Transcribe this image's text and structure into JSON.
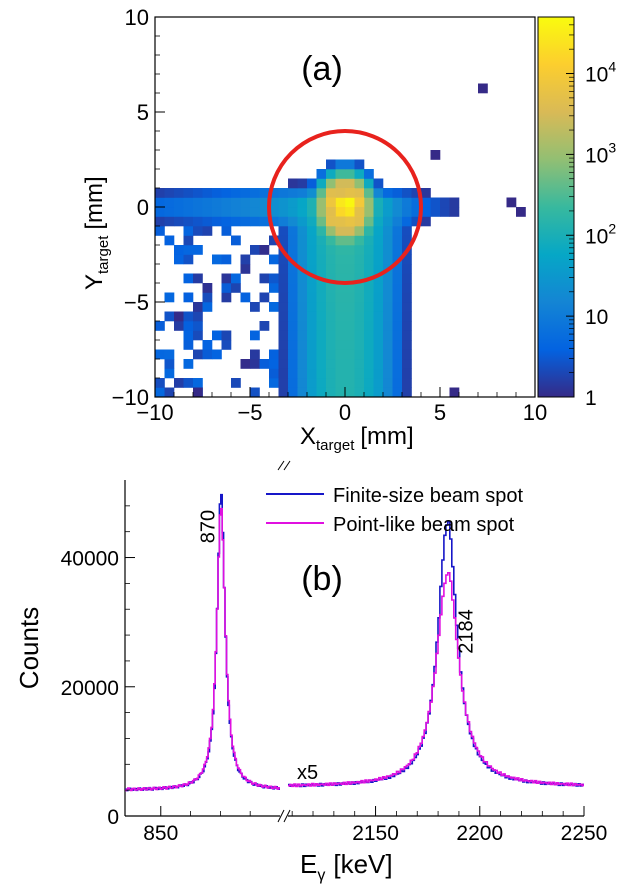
{
  "chart_data": [
    {
      "type": "heatmap",
      "panel_label": "(a)",
      "xlabel_main": "X",
      "xlabel_sub": "target",
      "xlabel_unit": "[mm]",
      "ylabel_main": "Y",
      "ylabel_sub": "target",
      "ylabel_unit": "[mm]",
      "xlim": [
        -10,
        10
      ],
      "ylim": [
        -10,
        10
      ],
      "x_ticks": [
        -10,
        -5,
        0,
        5,
        10
      ],
      "x_tick_labels": [
        "−10",
        "−5",
        "0",
        "5",
        "10"
      ],
      "y_ticks": [
        -10,
        -5,
        0,
        5,
        10
      ],
      "y_tick_labels": [
        "−10",
        "−5",
        "0",
        "5",
        "10"
      ],
      "bins": 40,
      "colorbar": {
        "scale": "log",
        "min": 1,
        "max": 50000,
        "ticks": [
          {
            "value": 1,
            "base": "1",
            "exp": ""
          },
          {
            "value": 10,
            "base": "10",
            "exp": ""
          },
          {
            "value": 100,
            "base": "10",
            "exp": "2"
          },
          {
            "value": 1000,
            "base": "10",
            "exp": "3"
          },
          {
            "value": 10000,
            "base": "10",
            "exp": "4"
          }
        ],
        "palette": [
          "#352a87",
          "#0363e1",
          "#1485d4",
          "#06a7c6",
          "#38b99e",
          "#92bf73",
          "#d9ba56",
          "#fcce2e",
          "#f9fb0e"
        ]
      },
      "circle": {
        "center": [
          0,
          0
        ],
        "radius": 4,
        "color": "#e8221d"
      },
      "cells": [
        [
          0.25,
          0.25,
          45000
        ],
        [
          -0.25,
          0.25,
          28000
        ],
        [
          0.25,
          -0.25,
          26000
        ],
        [
          -0.25,
          -0.25,
          17000
        ],
        [
          0.75,
          0.25,
          9000
        ],
        [
          -0.75,
          0.25,
          7500
        ],
        [
          0.25,
          0.75,
          5000
        ],
        [
          -0.25,
          0.75,
          4000
        ],
        [
          0.75,
          -0.25,
          5000
        ],
        [
          -0.75,
          -0.25,
          4500
        ],
        [
          0.25,
          -0.75,
          6000
        ],
        [
          -0.25,
          -0.75,
          5000
        ],
        [
          -7.75,
          -9.75,
          1
        ],
        [
          5.75,
          -9.75,
          1
        ],
        [
          7.25,
          6.25,
          1
        ],
        [
          4.75,
          2.75,
          1
        ],
        [
          8.75,
          0.25,
          1
        ],
        [
          9.25,
          -0.25,
          1
        ]
      ]
    },
    {
      "type": "line",
      "panel_label": "(b)",
      "xlabel_main": "E",
      "xlabel_sub": "γ",
      "xlabel_unit": "[keV]",
      "ylabel": "Counts",
      "ylim": [
        0,
        52000
      ],
      "y_ticks": [
        0,
        20000,
        40000
      ],
      "y_tick_labels": [
        "0",
        "20000",
        "40000"
      ],
      "x_ticks": [
        {
          "value": 850,
          "label": "850",
          "segment": 0
        },
        {
          "value": 2150,
          "label": "2150",
          "segment": 1
        },
        {
          "value": 2200,
          "label": "2200",
          "segment": 1
        },
        {
          "value": 2250,
          "label": "2250",
          "segment": 1
        }
      ],
      "segments": [
        {
          "xlim": [
            838,
            890
          ],
          "scale": 1
        },
        {
          "xlim": [
            2108,
            2250
          ],
          "scale": 5,
          "scale_label": "x5"
        }
      ],
      "peak_labels": [
        {
          "text": "870",
          "x": 870,
          "y": 45000,
          "segment": 0
        },
        {
          "text": "2184",
          "x": 2184,
          "y": 32000,
          "segment": 1
        }
      ],
      "series": [
        {
          "name": "Finite-size beam spot",
          "color": "#1616c8",
          "peaks": [
            {
              "segment": 0,
              "center": 870,
              "height": 50000,
              "width": 1.6,
              "baseline": 4000
            },
            {
              "segment": 1,
              "center": 2184,
              "height": 45500,
              "width": 5.5,
              "baseline": 4500
            }
          ]
        },
        {
          "name": "Point-like beam spot",
          "color": "#e010e0",
          "peaks": [
            {
              "segment": 0,
              "center": 870,
              "height": 48000,
              "width": 1.7,
              "baseline": 4000
            },
            {
              "segment": 1,
              "center": 2184,
              "height": 37500,
              "width": 6.5,
              "baseline": 4500
            }
          ]
        }
      ],
      "legend_position": "top-right"
    }
  ]
}
